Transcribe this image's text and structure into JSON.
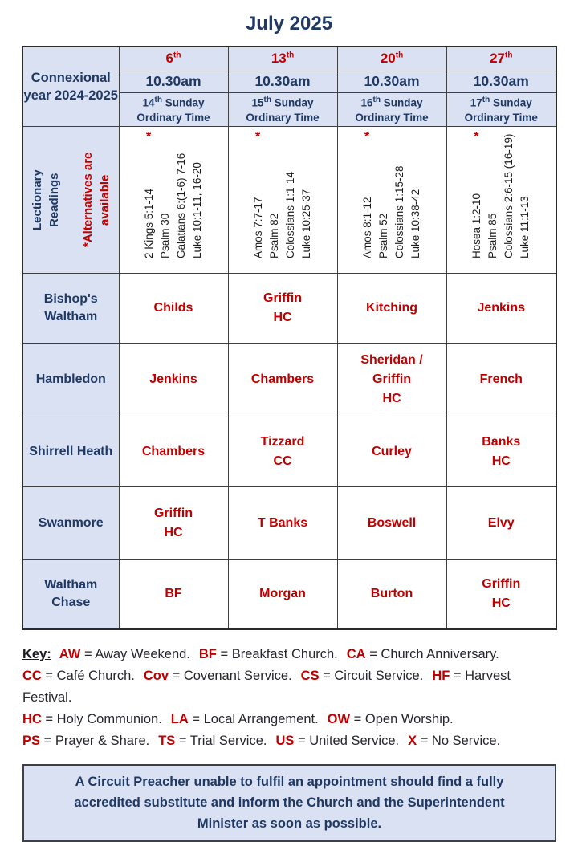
{
  "title": "July 2025",
  "colors": {
    "navy": "#1F3864",
    "red": "#C00000",
    "light_blue": "#D9E1F2",
    "border": "#404040"
  },
  "table": {
    "corner_label": "Connexional year 2024-2025",
    "asterisk": "*",
    "lectionary_header": {
      "main": "Lectionary\nReadings",
      "alternatives": "*Alternatives are\navailable"
    },
    "columns": [
      {
        "date": "6",
        "date_suffix": "th",
        "time": "10.30am",
        "sunday_ordinal": "14",
        "sunday_suffix": "th",
        "sunday_word": "Sunday",
        "sunday_line2": "Ordinary Time",
        "readings": [
          "2 Kings 5:1-14",
          "Psalm 30",
          "Galatians 6:(1-6) 7-16",
          "Luke 10:1-11, 16-20"
        ]
      },
      {
        "date": "13",
        "date_suffix": "th",
        "time": "10.30am",
        "sunday_ordinal": "15",
        "sunday_suffix": "th",
        "sunday_word": "Sunday",
        "sunday_line2": "Ordinary Time",
        "readings": [
          "Amos 7:7-17",
          "Psalm 82",
          "Colossians 1:1-14",
          "Luke 10:25-37"
        ]
      },
      {
        "date": "20",
        "date_suffix": "th",
        "time": "10.30am",
        "sunday_ordinal": "16",
        "sunday_suffix": "th",
        "sunday_word": "Sunday",
        "sunday_line2": "Ordinary Time",
        "readings": [
          "Amos 8:1-12",
          "Psalm 52",
          "Colossians 1:15-28",
          "Luke 10:38-42"
        ]
      },
      {
        "date": "27",
        "date_suffix": "th",
        "time": "10.30am",
        "sunday_ordinal": "17",
        "sunday_suffix": "th",
        "sunday_word": "Sunday",
        "sunday_line2": "Ordinary Time",
        "readings": [
          "Hosea 1:2-10",
          "Psalm 85",
          "Colossians 2:6-15 (16-19)",
          "Luke 11:1-13"
        ]
      }
    ],
    "churches": [
      {
        "name": "Bishop's Waltham",
        "cells": [
          "Childs",
          "Griffin\nHC",
          "Kitching",
          "Jenkins"
        ]
      },
      {
        "name": "Hambledon",
        "cells": [
          "Jenkins",
          "Chambers",
          "Sheridan /\nGriffin\nHC",
          "French"
        ]
      },
      {
        "name": "Shirrell Heath",
        "cells": [
          "Chambers",
          "Tizzard\nCC",
          "Curley",
          "Banks\nHC"
        ]
      },
      {
        "name": "Swanmore",
        "cells": [
          "Griffin\nHC",
          "T Banks",
          "Boswell",
          "Elvy"
        ]
      },
      {
        "name": "Waltham Chase",
        "cells": [
          "BF",
          "Morgan",
          "Burton",
          "Griffin\nHC"
        ]
      }
    ]
  },
  "key": {
    "label": "Key:",
    "lines": [
      [
        {
          "abbr": "AW",
          "def": "= Away Weekend."
        },
        {
          "abbr": "BF",
          "def": "= Breakfast Church."
        },
        {
          "abbr": "CA",
          "def": "= Church Anniversary."
        }
      ],
      [
        {
          "abbr": "CC",
          "def": "= Café Church."
        },
        {
          "abbr": "Cov",
          "def": "= Covenant Service."
        },
        {
          "abbr": "CS",
          "def": "= Circuit Service."
        },
        {
          "abbr": "HF",
          "def": "= Harvest Festival."
        }
      ],
      [
        {
          "abbr": "HC",
          "def": "= Holy Communion."
        },
        {
          "abbr": "LA",
          "def": "= Local Arrangement."
        },
        {
          "abbr": "OW",
          "def": "= Open Worship."
        }
      ],
      [
        {
          "abbr": "PS",
          "def": "= Prayer & Share."
        },
        {
          "abbr": "TS",
          "def": "= Trial Service."
        },
        {
          "abbr": "US",
          "def": "= United Service."
        },
        {
          "abbr": "X",
          "def": "= No Service."
        }
      ]
    ]
  },
  "note": {
    "text": "A Circuit Preacher unable to fulfil an appointment should find a fully accredited substitute and inform the Church and the Superintendent Minister as soon as possible."
  }
}
